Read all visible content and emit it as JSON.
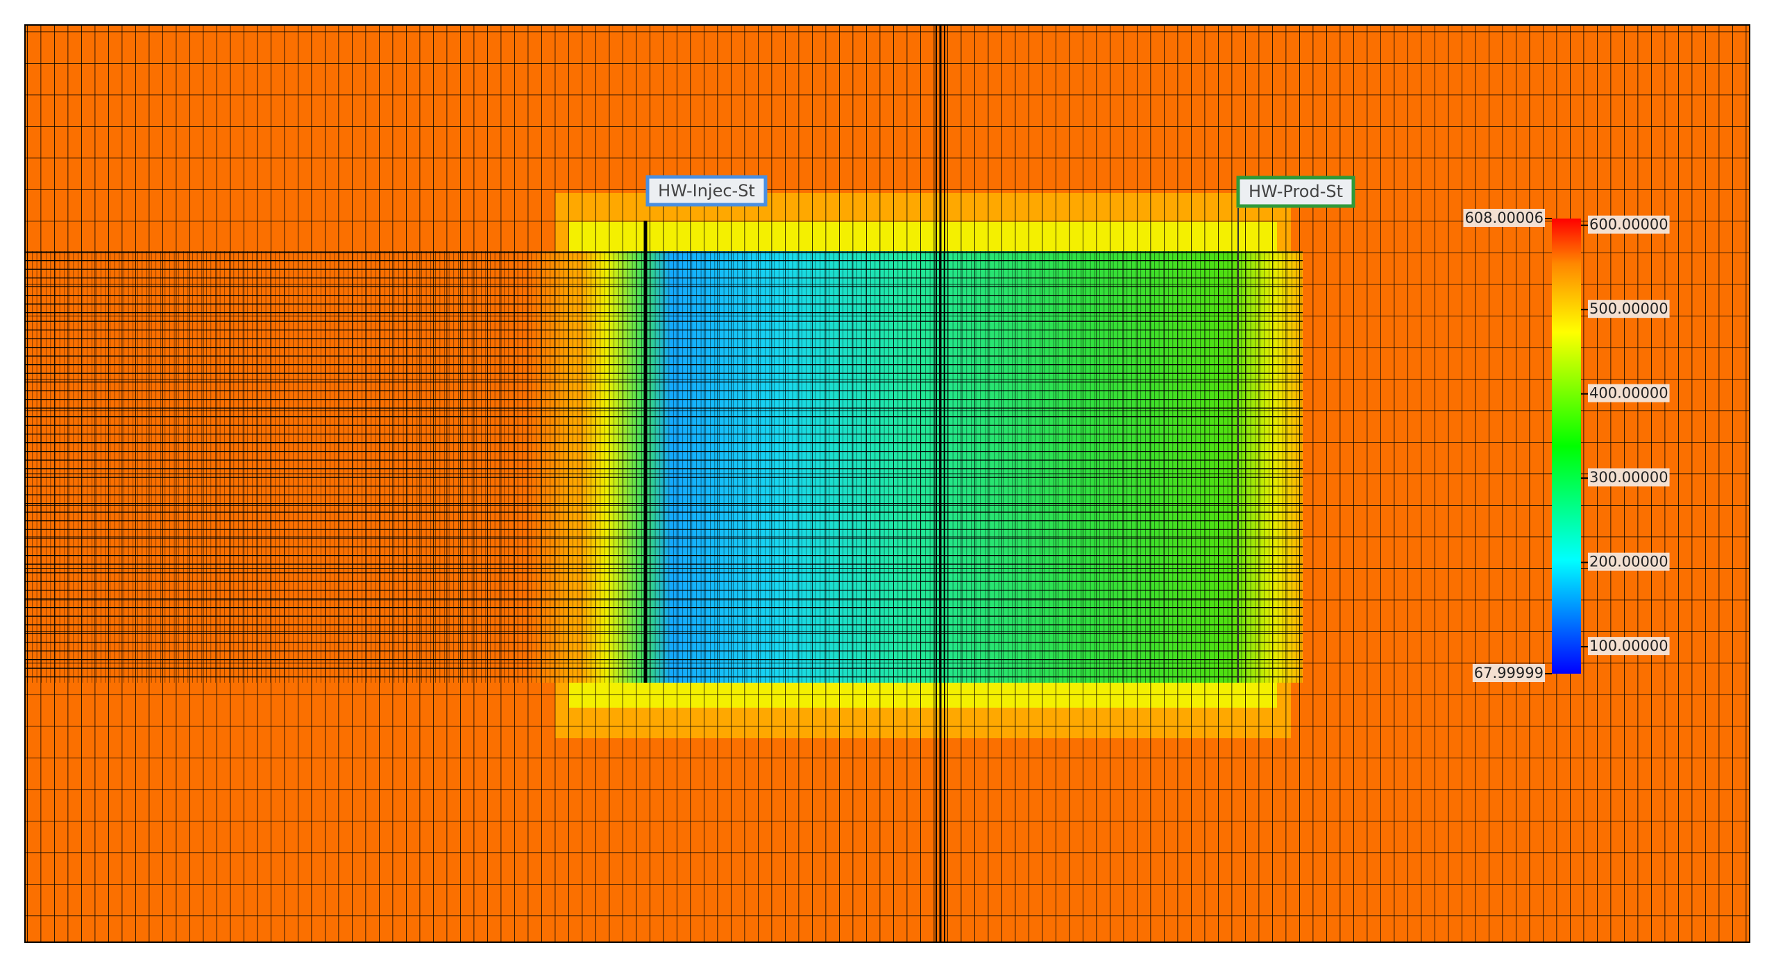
{
  "wells": [
    {
      "label": "HW-Injec-St"
    },
    {
      "label": "HW-Prod-St"
    }
  ],
  "colorbar": {
    "min": 67.99999,
    "max": 608.00006,
    "ticks": [
      {
        "value": 600,
        "label": "600.00000"
      },
      {
        "value": 500,
        "label": "500.00000"
      },
      {
        "value": 400,
        "label": "400.00000"
      },
      {
        "value": 300,
        "label": "300.00000"
      },
      {
        "value": 200,
        "label": "200.00000"
      },
      {
        "value": 100,
        "label": "100.00000"
      }
    ]
  }
}
